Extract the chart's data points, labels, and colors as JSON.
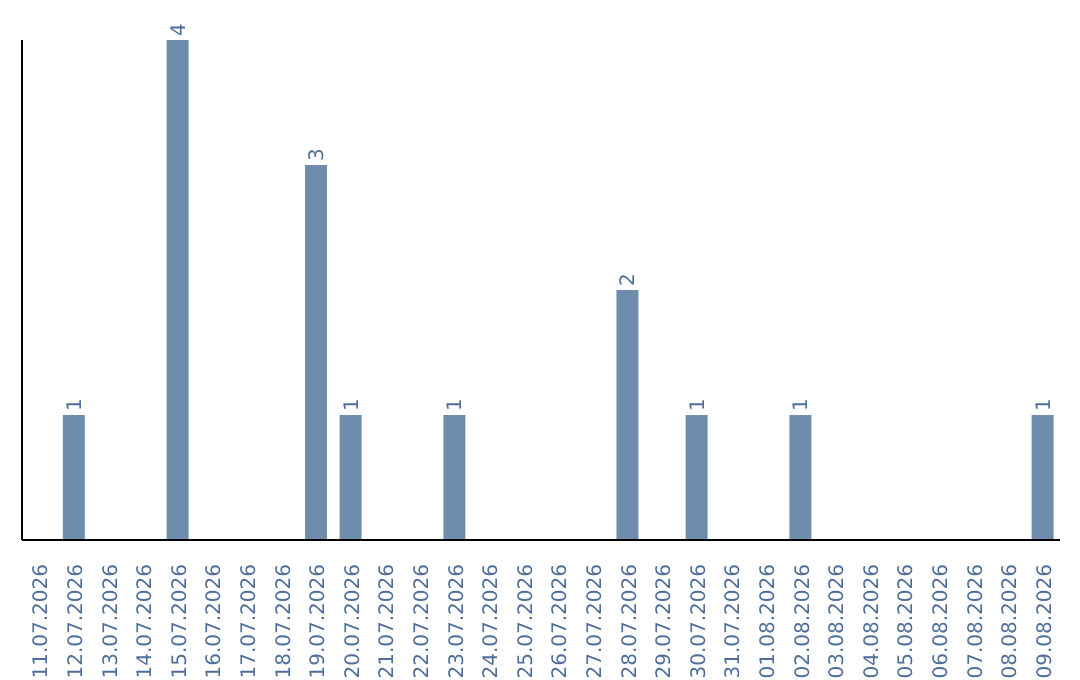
{
  "chart_data": {
    "type": "bar",
    "categories": [
      "11.07.2026",
      "12.07.2026",
      "13.07.2026",
      "14.07.2026",
      "15.07.2026",
      "16.07.2026",
      "17.07.2026",
      "18.07.2026",
      "19.07.2026",
      "20.07.2026",
      "21.07.2026",
      "22.07.2026",
      "23.07.2026",
      "24.07.2026",
      "25.07.2026",
      "26.07.2026",
      "27.07.2026",
      "28.07.2026",
      "29.07.2026",
      "30.07.2026",
      "31.07.2026",
      "01.08.2026",
      "02.08.2026",
      "03.08.2026",
      "04.08.2026",
      "05.08.2026",
      "06.08.2026",
      "07.08.2026",
      "08.08.2026",
      "09.08.2026"
    ],
    "values": [
      0,
      1,
      0,
      0,
      4,
      0,
      0,
      0,
      3,
      1,
      0,
      0,
      1,
      0,
      0,
      0,
      0,
      2,
      0,
      1,
      0,
      0,
      1,
      0,
      0,
      0,
      0,
      0,
      0,
      1
    ],
    "value_labels": [
      null,
      "1",
      null,
      null,
      "4",
      null,
      null,
      null,
      "3",
      "1",
      null,
      null,
      "1",
      null,
      null,
      null,
      null,
      "2",
      null,
      "1",
      null,
      null,
      "1",
      null,
      null,
      null,
      null,
      null,
      null,
      "1"
    ],
    "color": "#6e8cab",
    "tick_labels": "x",
    "grid": false,
    "legend": false
  }
}
